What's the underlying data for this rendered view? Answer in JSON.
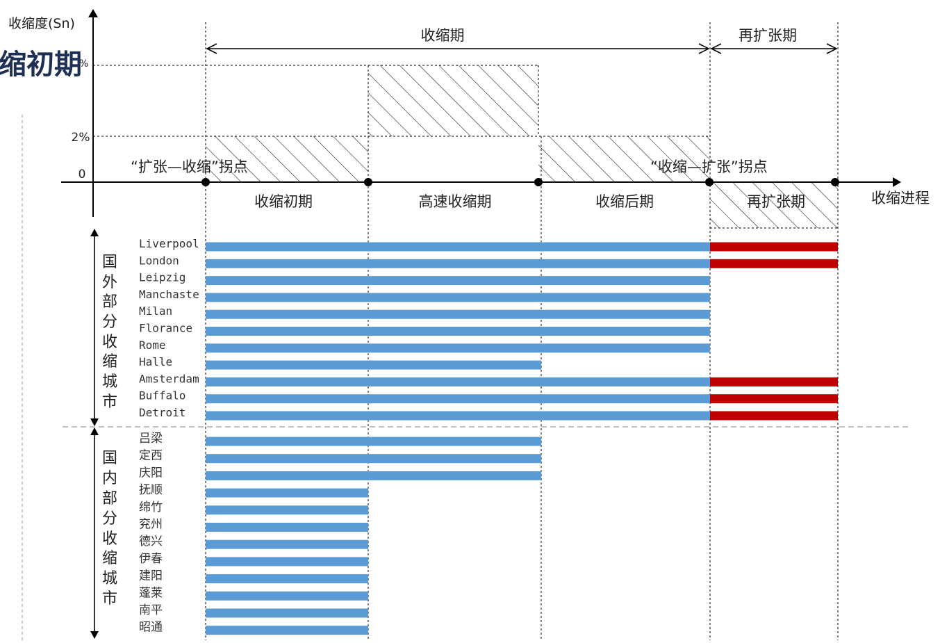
{
  "title": {
    "partial": "缩初期",
    "percent_suffix": "%"
  },
  "y_axis": {
    "label": "收缩度(Sn)",
    "ticks": [
      "0",
      "2%"
    ]
  },
  "x_axis": {
    "label": "收缩进程"
  },
  "spans": {
    "contraction": "收缩期",
    "reexpansion": "再扩张期"
  },
  "turning_points": {
    "expand_to_contract": "“扩张—收缩”拐点",
    "contract_to_expand": "“收缩—扩张”拐点"
  },
  "phases": [
    "收缩初期",
    "高速收缩期",
    "收缩后期",
    "再扩张期"
  ],
  "groups": {
    "foreign": [
      "国",
      "外",
      "部",
      "分",
      "收",
      "缩",
      "城",
      "市"
    ],
    "domestic": [
      "国",
      "内",
      "部",
      "分",
      "收",
      "缩",
      "城",
      "市"
    ]
  },
  "colors": {
    "contraction_bar": "#5b9bd5",
    "reexpansion_bar": "#c00000",
    "axis": "#000000",
    "title": "#1d2f55"
  },
  "chart_data": {
    "type": "bar",
    "orientation": "horizontal",
    "stages": [
      "收缩初期",
      "高速收缩期",
      "收缩后期",
      "再扩张期"
    ],
    "foreign_cities": [
      {
        "name": "Liverpool",
        "contraction_end_stage": 3,
        "reexpansion": true
      },
      {
        "name": "London",
        "contraction_end_stage": 3,
        "reexpansion": true
      },
      {
        "name": "Leipzig",
        "contraction_end_stage": 3,
        "reexpansion": false
      },
      {
        "name": "Manchaste",
        "contraction_end_stage": 3,
        "reexpansion": false
      },
      {
        "name": "Milan",
        "contraction_end_stage": 3,
        "reexpansion": false
      },
      {
        "name": "Florance",
        "contraction_end_stage": 3,
        "reexpansion": false
      },
      {
        "name": "Rome",
        "contraction_end_stage": 3,
        "reexpansion": false
      },
      {
        "name": "Halle",
        "contraction_end_stage": 2,
        "reexpansion": false
      },
      {
        "name": "Amsterdam",
        "contraction_end_stage": 3,
        "reexpansion": true
      },
      {
        "name": "Buffalo",
        "contraction_end_stage": 3,
        "reexpansion": true
      },
      {
        "name": "Detroit",
        "contraction_end_stage": 3,
        "reexpansion": true
      }
    ],
    "domestic_cities": [
      {
        "name": "吕梁",
        "contraction_end_stage": 2,
        "reexpansion": false
      },
      {
        "name": "定西",
        "contraction_end_stage": 2,
        "reexpansion": false
      },
      {
        "name": "庆阳",
        "contraction_end_stage": 2,
        "reexpansion": false
      },
      {
        "name": "抚顺",
        "contraction_end_stage": 1,
        "reexpansion": false
      },
      {
        "name": "绵竹",
        "contraction_end_stage": 1,
        "reexpansion": false
      },
      {
        "name": "兖州",
        "contraction_end_stage": 1,
        "reexpansion": false
      },
      {
        "name": "德兴",
        "contraction_end_stage": 1,
        "reexpansion": false
      },
      {
        "name": "伊春",
        "contraction_end_stage": 1,
        "reexpansion": false
      },
      {
        "name": "建阳",
        "contraction_end_stage": 1,
        "reexpansion": false
      },
      {
        "name": "蓬莱",
        "contraction_end_stage": 1,
        "reexpansion": false
      },
      {
        "name": "南平",
        "contraction_end_stage": 1,
        "reexpansion": false
      },
      {
        "name": "昭通",
        "contraction_end_stage": 1,
        "reexpansion": false
      }
    ]
  }
}
